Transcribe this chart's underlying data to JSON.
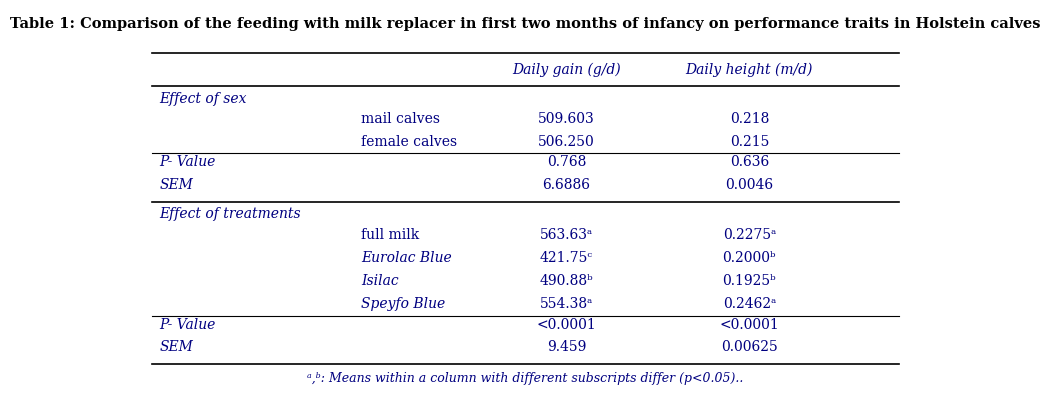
{
  "title": "Table 1: Comparison of the feeding with milk replacer in first two months of infancy on performance traits in Holstein calves",
  "col_headers": [
    "",
    "",
    "Daily gain (g/d)",
    "Daily height (m/d)"
  ],
  "section1_header": "Effect of sex",
  "section1_rows": [
    [
      "",
      "mail calves",
      "509.603",
      "0.218"
    ],
    [
      "",
      "female calves",
      "506.250",
      "0.215"
    ],
    [
      "P- Value",
      "",
      "0.768",
      "0.636"
    ],
    [
      "SEM",
      "",
      "6.6886",
      "0.0046"
    ]
  ],
  "section2_header": "Effect of treatments",
  "section2_rows": [
    [
      "",
      "full milk",
      "563.63ᵃ",
      "0.2275ᵃ"
    ],
    [
      "",
      "Eurolac Blue",
      "421.75ᶜ",
      "0.2000ᵇ"
    ],
    [
      "",
      "Isilac",
      "490.88ᵇ",
      "0.1925ᵇ"
    ],
    [
      "",
      "Speyfo Blue",
      "554.38ᵃ",
      "0.2462ᵃ"
    ],
    [
      "P- Value",
      "",
      "<0.0001",
      "<0.0001"
    ],
    [
      "SEM",
      "",
      "9.459",
      "0.00625"
    ]
  ],
  "footnote": "ᵃ,ᵇ: Means within a column with different subscripts differ (p<0.05)..",
  "bg_color": "#ffffff",
  "text_color": "#000080",
  "title_color": "#000000",
  "font_family": "serif",
  "title_fontsize": 10.5,
  "header_fontsize": 10,
  "body_fontsize": 10,
  "footnote_fontsize": 9
}
